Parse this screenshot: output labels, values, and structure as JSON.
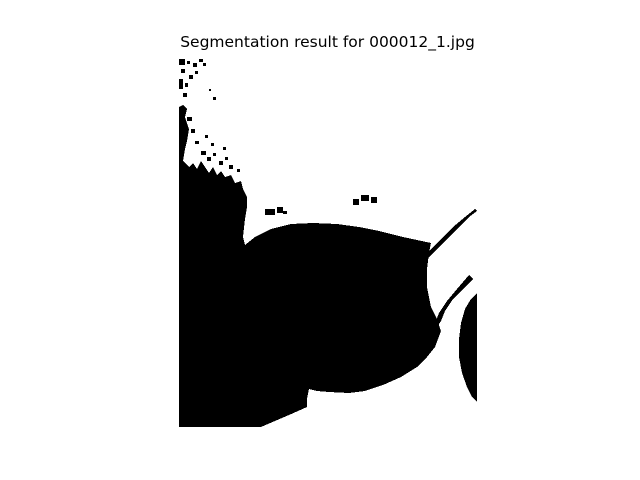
{
  "figure": {
    "title": "Segmentation result for 000012_1.jpg"
  },
  "mask": {
    "foreground_color": "#000000",
    "background_color": "#ffffff"
  }
}
